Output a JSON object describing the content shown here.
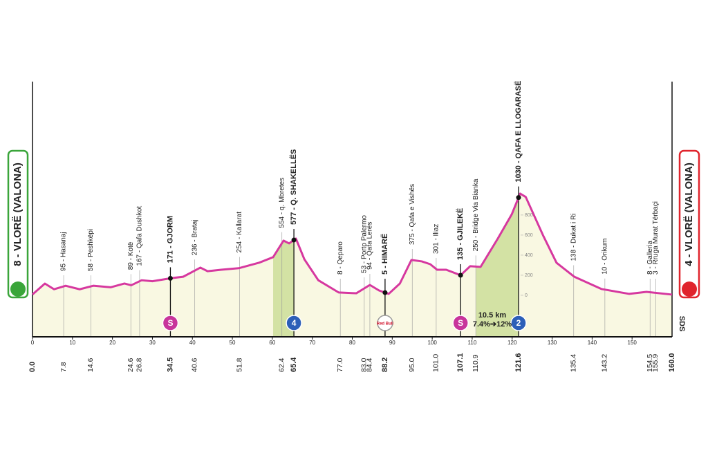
{
  "chart_data": {
    "type": "area",
    "start_label": "8 - VLORË (VALONA)",
    "finish_label": "4 - VLORË (VALONA)",
    "color": "#d6389f",
    "fill": "#f9f8e2",
    "climb_fill": "#d3e2a4",
    "x": [
      0,
      3.1,
      5.4,
      8.3,
      11.8,
      15.2,
      19.6,
      23,
      24.7,
      27.3,
      30,
      34.8,
      37.7,
      42,
      43.8,
      47.2,
      51.6,
      56.7,
      60.2,
      62.8,
      64.2,
      65.9,
      68,
      71.5,
      76.6,
      81,
      84.4,
      86.7,
      89.1,
      91.9,
      94.8,
      97.4,
      99.5,
      101.2,
      103.5,
      107.1,
      109.5,
      112.1,
      116.4,
      119.9,
      122,
      123.4,
      127.7,
      131.1,
      135.5,
      142.4,
      149.3,
      153.6,
      160
    ],
    "values": [
      8,
      117,
      60,
      95,
      60,
      95,
      80,
      117,
      100,
      150,
      140,
      171,
      185,
      276,
      240,
      255,
      270,
      325,
      380,
      545,
      517,
      565,
      360,
      150,
      28,
      20,
      103,
      48,
      14,
      117,
      352,
      338,
      310,
      255,
      255,
      200,
      290,
      283,
      565,
      807,
      1014,
      980,
      600,
      324,
      186,
      62,
      14,
      34,
      7
    ],
    "xlim": [
      0,
      160
    ],
    "xticks": [
      0,
      10,
      20,
      30,
      40,
      50,
      60,
      70,
      80,
      90,
      100,
      110,
      120,
      130,
      140,
      150
    ],
    "ylim": [
      -414,
      2130
    ],
    "yticks": [
      0,
      200,
      400,
      600,
      800
    ],
    "climbs": [
      {
        "start": 60.2,
        "end": 65.4
      },
      {
        "start": 111,
        "end": 121.6
      }
    ],
    "waypoints": [
      {
        "km": 0,
        "km_label": "0.0",
        "bold": true
      },
      {
        "km": 7.8,
        "label": "95 - Hasanaj"
      },
      {
        "km": 14.6,
        "label": "58 - Peshkëpi"
      },
      {
        "km": 24.6,
        "label": "89 - Kotë"
      },
      {
        "km": 26.8,
        "label": "167 - Qafa Dushkot"
      },
      {
        "km": 34.5,
        "label": "171 - GJORM",
        "bold": true
      },
      {
        "km": 40.6,
        "label": "236 - Brataj"
      },
      {
        "km": 51.8,
        "label": "254 - Kallarat"
      },
      {
        "km": 62.4,
        "label": "554 - q. Mbretes"
      },
      {
        "km": 65.4,
        "label": "577 - Q. SHAKELLËS",
        "bold": true
      },
      {
        "km": 77,
        "km_label": "77.0",
        "label": "8 - Qeparo"
      },
      {
        "km": 83,
        "km_label": "83.0",
        "label": "53 - Porto Palermo"
      },
      {
        "km": 84.4,
        "label": "94 - Qafa Lerës"
      },
      {
        "km": 88.2,
        "label": "5 - HIMARË",
        "bold": true
      },
      {
        "km": 95,
        "km_label": "95.0",
        "label": "375 - Qafa e Vishës"
      },
      {
        "km": 101,
        "km_label": "101.0",
        "label": "301 - Iliaz"
      },
      {
        "km": 107.1,
        "label": "135 - GJILEKË",
        "bold": true
      },
      {
        "km": 110.9,
        "label": "250 - Bridge Via Bianka"
      },
      {
        "km": 121.6,
        "label": "1030 - QAFA E LLOGARASË",
        "bold": true
      },
      {
        "km": 135.4,
        "label": "138 - Dukat i Ri"
      },
      {
        "km": 143.2,
        "label": "10 - Orikum"
      },
      {
        "km": 154.5,
        "label": "8 - Galleria"
      },
      {
        "km": 155.9,
        "label": "3 - Rruga Murat Tërbaçi"
      },
      {
        "km": 160,
        "km_label": "160.0",
        "bold": true
      }
    ],
    "markers": [
      {
        "km": 34.5,
        "label": "S",
        "color": "#c8359b"
      },
      {
        "km": 65.4,
        "label": "4",
        "color": "#2c5fb8"
      },
      {
        "km": 88.2,
        "label": "Red Bull",
        "color": "#ffffff"
      },
      {
        "km": 107.1,
        "label": "S",
        "color": "#c8359b"
      },
      {
        "km": 121.6,
        "label": "2",
        "color": "#2c5fb8"
      }
    ],
    "annotation": [
      "10.5 km",
      "7.4%➔12%"
    ],
    "brand": "SDS"
  }
}
